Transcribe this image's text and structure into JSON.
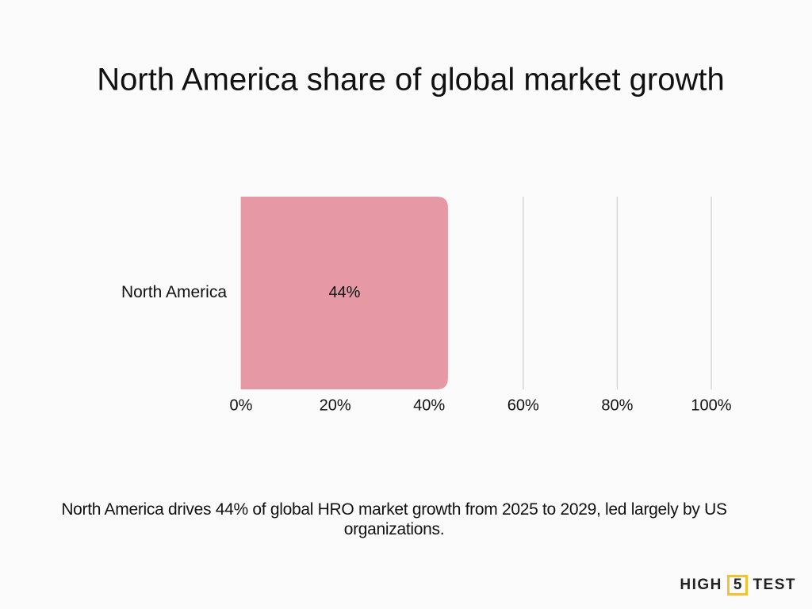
{
  "chart_data": {
    "type": "hbar",
    "title": "North America share of global market growth",
    "categories": [
      "North America"
    ],
    "values": [
      44
    ],
    "value_labels": [
      "44%"
    ],
    "color": "#e698a5",
    "xlim": [
      0,
      100
    ],
    "xticks": [
      {
        "value": 0,
        "label": "0%"
      },
      {
        "value": 20,
        "label": "20%"
      },
      {
        "value": 40,
        "label": "40%"
      },
      {
        "value": 60,
        "label": "60%"
      },
      {
        "value": 80,
        "label": "80%"
      },
      {
        "value": 100,
        "label": "100%"
      }
    ],
    "grid": true,
    "caption": "North America drives 44% of global HRO market growth from 2025 to 2029, led largely by US organizations.",
    "brand": [
      "HIGH",
      "5",
      "TEST"
    ]
  }
}
